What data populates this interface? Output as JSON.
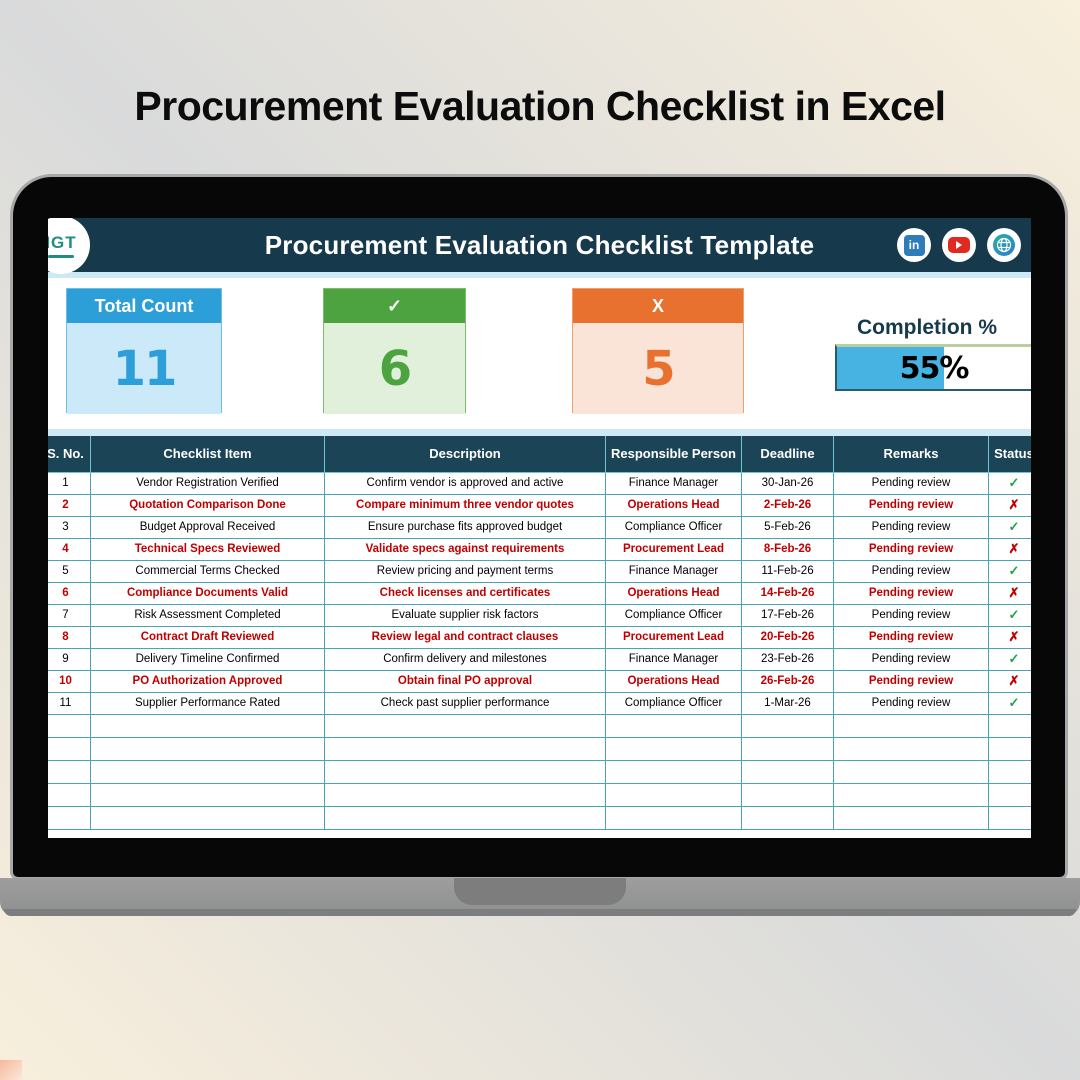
{
  "page": {
    "title": "Procurement Evaluation Checklist in Excel"
  },
  "app": {
    "header": {
      "title": "Procurement Evaluation Checklist Template",
      "logo_text": "IGT",
      "linkedin_label": "in"
    },
    "kpis": {
      "total": {
        "label": "Total Count",
        "value": "11"
      },
      "passed": {
        "label": "✓",
        "value": "6"
      },
      "failed": {
        "label": "X",
        "value": "5"
      },
      "completion": {
        "label": "Completion %",
        "value": "55%",
        "percent": 55
      }
    },
    "table": {
      "columns": [
        "S. No.",
        "Checklist Item",
        "Description",
        "Responsible Person",
        "Deadline",
        "Remarks",
        "Status"
      ],
      "check_glyph": "✓",
      "cross_glyph": "✗",
      "empty_row_count": 5,
      "rows": [
        {
          "no": "1",
          "item": "Vendor Registration Verified",
          "desc": "Confirm vendor is approved and active",
          "person": "Finance Manager",
          "deadline": "30-Jan-26",
          "remarks": "Pending review",
          "status": "pass"
        },
        {
          "no": "2",
          "item": "Quotation Comparison Done",
          "desc": "Compare minimum three vendor quotes",
          "person": "Operations Head",
          "deadline": "2-Feb-26",
          "remarks": "Pending review",
          "status": "fail"
        },
        {
          "no": "3",
          "item": "Budget Approval Received",
          "desc": "Ensure purchase fits approved budget",
          "person": "Compliance Officer",
          "deadline": "5-Feb-26",
          "remarks": "Pending review",
          "status": "pass"
        },
        {
          "no": "4",
          "item": "Technical Specs Reviewed",
          "desc": "Validate specs against requirements",
          "person": "Procurement Lead",
          "deadline": "8-Feb-26",
          "remarks": "Pending review",
          "status": "fail"
        },
        {
          "no": "5",
          "item": "Commercial Terms Checked",
          "desc": "Review pricing and payment terms",
          "person": "Finance Manager",
          "deadline": "11-Feb-26",
          "remarks": "Pending review",
          "status": "pass"
        },
        {
          "no": "6",
          "item": "Compliance Documents Valid",
          "desc": "Check licenses and certificates",
          "person": "Operations Head",
          "deadline": "14-Feb-26",
          "remarks": "Pending review",
          "status": "fail"
        },
        {
          "no": "7",
          "item": "Risk Assessment Completed",
          "desc": "Evaluate supplier risk factors",
          "person": "Compliance Officer",
          "deadline": "17-Feb-26",
          "remarks": "Pending review",
          "status": "pass"
        },
        {
          "no": "8",
          "item": "Contract Draft Reviewed",
          "desc": "Review legal and contract clauses",
          "person": "Procurement Lead",
          "deadline": "20-Feb-26",
          "remarks": "Pending review",
          "status": "fail"
        },
        {
          "no": "9",
          "item": "Delivery Timeline Confirmed",
          "desc": "Confirm delivery and milestones",
          "person": "Finance Manager",
          "deadline": "23-Feb-26",
          "remarks": "Pending review",
          "status": "pass"
        },
        {
          "no": "10",
          "item": "PO Authorization Approved",
          "desc": "Obtain final PO approval",
          "person": "Operations Head",
          "deadline": "26-Feb-26",
          "remarks": "Pending review",
          "status": "fail"
        },
        {
          "no": "11",
          "item": "Supplier Performance Rated",
          "desc": "Check past supplier performance",
          "person": "Compliance Officer",
          "deadline": "1-Mar-26",
          "remarks": "Pending review",
          "status": "pass"
        }
      ]
    },
    "colors": {
      "header_navy": "#16394c",
      "table_header": "#1b4557",
      "accent_blue": "#2d9fd8",
      "accent_green": "#4ca33f",
      "accent_orange": "#e8712f",
      "progress_fill": "#47b3e2",
      "fail_red": "#c00000",
      "pass_green": "#23a14e"
    }
  }
}
